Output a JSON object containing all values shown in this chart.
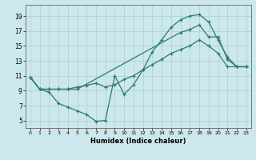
{
  "xlabel": "Humidex (Indice chaleur)",
  "x_ticks": [
    0,
    1,
    2,
    3,
    4,
    5,
    6,
    7,
    8,
    9,
    10,
    11,
    12,
    13,
    14,
    15,
    16,
    17,
    18,
    19,
    20,
    21,
    22,
    23
  ],
  "y_ticks": [
    5,
    7,
    9,
    11,
    13,
    15,
    17,
    19
  ],
  "xlim": [
    -0.5,
    23.5
  ],
  "ylim": [
    4.0,
    20.5
  ],
  "line_color": "#2d7a6e",
  "bg_color": "#cce8ec",
  "grid_color": "#aacdd4",
  "line1_x": [
    0,
    1,
    2,
    3,
    4,
    5,
    6,
    7,
    8,
    9,
    10,
    11,
    12,
    13,
    14,
    15,
    16,
    17,
    18,
    19,
    20,
    21,
    22,
    23
  ],
  "line1_y": [
    10.8,
    9.2,
    8.8,
    7.3,
    6.8,
    6.3,
    5.8,
    4.9,
    5.0,
    11.0,
    8.5,
    9.8,
    11.8,
    14.2,
    15.8,
    17.5,
    18.5,
    19.0,
    19.2,
    18.2,
    15.8,
    13.5,
    12.2,
    12.2
  ],
  "line2_x": [
    0,
    1,
    2,
    3,
    4,
    5,
    16,
    17,
    18,
    19,
    20,
    21,
    22,
    23
  ],
  "line2_y": [
    10.8,
    9.2,
    9.2,
    9.2,
    9.2,
    9.2,
    16.8,
    17.2,
    17.8,
    16.2,
    16.2,
    13.2,
    12.2,
    12.2
  ],
  "line3_x": [
    0,
    1,
    2,
    3,
    4,
    5,
    6,
    7,
    8,
    9,
    10,
    11,
    12,
    13,
    14,
    15,
    16,
    17,
    18,
    19,
    20,
    21,
    22,
    23
  ],
  "line3_y": [
    10.8,
    9.2,
    9.2,
    9.2,
    9.2,
    9.5,
    9.7,
    10.0,
    9.5,
    9.8,
    10.5,
    11.0,
    11.8,
    12.5,
    13.2,
    14.0,
    14.5,
    15.0,
    15.8,
    15.0,
    14.0,
    12.2,
    12.2,
    12.2
  ]
}
